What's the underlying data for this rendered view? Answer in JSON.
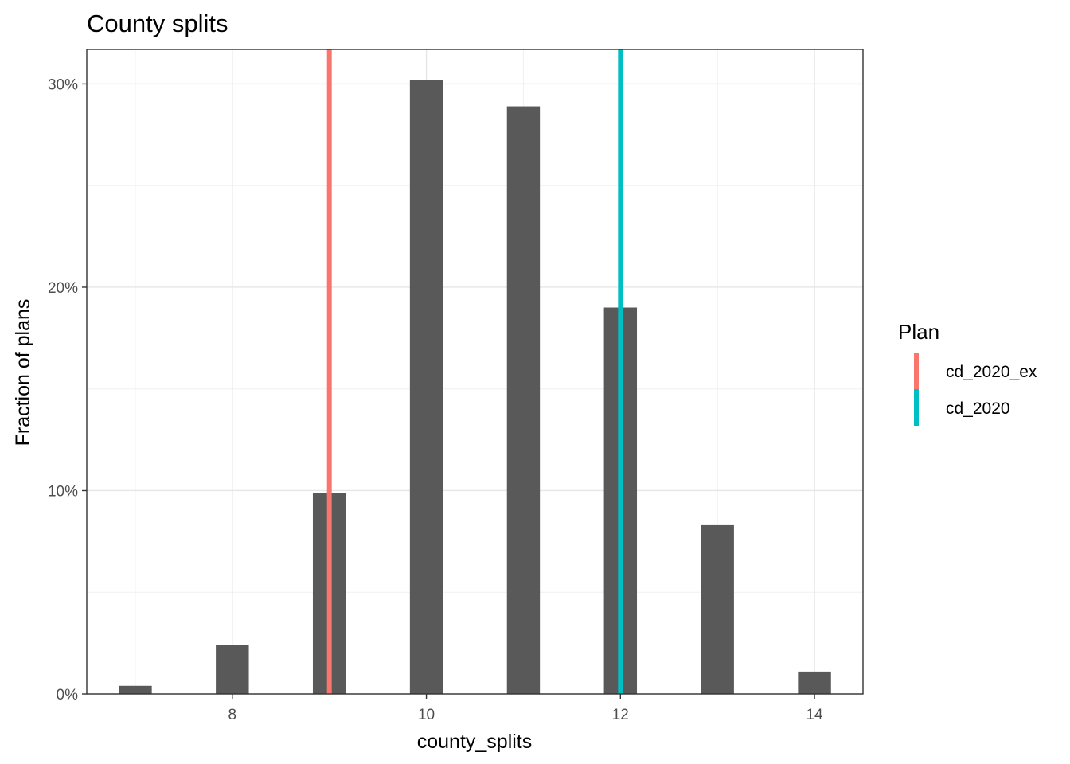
{
  "chart_data": {
    "type": "bar",
    "title": "County splits",
    "xlabel": "county_splits",
    "ylabel": "Fraction of plans",
    "x": [
      7,
      8,
      9,
      10,
      11,
      12,
      13,
      14
    ],
    "values": [
      0.4,
      2.4,
      9.9,
      30.2,
      28.9,
      19.0,
      8.3,
      1.1
    ],
    "xlim": [
      6.5,
      14.5
    ],
    "ylim": [
      0,
      31.7
    ],
    "xticks": [
      8,
      10,
      12,
      14
    ],
    "xtick_labels": [
      "8",
      "10",
      "12",
      "14"
    ],
    "yticks": [
      0,
      10,
      20,
      30
    ],
    "ytick_labels": [
      "0%",
      "10%",
      "20%",
      "30%"
    ],
    "yminor": [
      5,
      15,
      25
    ],
    "xminor": [
      7,
      9,
      11,
      13
    ],
    "bar_color": "#595959",
    "grid": true,
    "reference_lines": [
      {
        "name": "cd_2020_ex",
        "x": 9,
        "color": "#F8766D"
      },
      {
        "name": "cd_2020",
        "x": 12,
        "color": "#00BFC4"
      }
    ],
    "legend": {
      "title": "Plan",
      "placement": "right"
    }
  }
}
